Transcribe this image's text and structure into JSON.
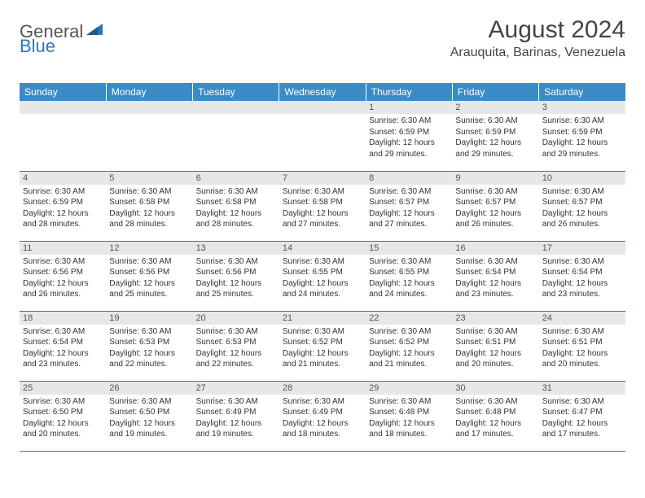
{
  "logo": {
    "general": "General",
    "blue": "Blue"
  },
  "title": "August 2024",
  "location": "Arauquita, Barinas, Venezuela",
  "colors": {
    "header_bg": "#3b8bc7",
    "header_text": "#ffffff",
    "daynum_bg": "#e7e7e7",
    "border": "#2e75b6",
    "title_text": "#444444",
    "body_text": "#333333"
  },
  "daysOfWeek": [
    "Sunday",
    "Monday",
    "Tuesday",
    "Wednesday",
    "Thursday",
    "Friday",
    "Saturday"
  ],
  "weeks": [
    [
      null,
      null,
      null,
      null,
      {
        "n": "1",
        "sr": "Sunrise: 6:30 AM",
        "ss": "Sunset: 6:59 PM",
        "d1": "Daylight: 12 hours",
        "d2": "and 29 minutes."
      },
      {
        "n": "2",
        "sr": "Sunrise: 6:30 AM",
        "ss": "Sunset: 6:59 PM",
        "d1": "Daylight: 12 hours",
        "d2": "and 29 minutes."
      },
      {
        "n": "3",
        "sr": "Sunrise: 6:30 AM",
        "ss": "Sunset: 6:59 PM",
        "d1": "Daylight: 12 hours",
        "d2": "and 29 minutes."
      }
    ],
    [
      {
        "n": "4",
        "sr": "Sunrise: 6:30 AM",
        "ss": "Sunset: 6:59 PM",
        "d1": "Daylight: 12 hours",
        "d2": "and 28 minutes."
      },
      {
        "n": "5",
        "sr": "Sunrise: 6:30 AM",
        "ss": "Sunset: 6:58 PM",
        "d1": "Daylight: 12 hours",
        "d2": "and 28 minutes."
      },
      {
        "n": "6",
        "sr": "Sunrise: 6:30 AM",
        "ss": "Sunset: 6:58 PM",
        "d1": "Daylight: 12 hours",
        "d2": "and 28 minutes."
      },
      {
        "n": "7",
        "sr": "Sunrise: 6:30 AM",
        "ss": "Sunset: 6:58 PM",
        "d1": "Daylight: 12 hours",
        "d2": "and 27 minutes."
      },
      {
        "n": "8",
        "sr": "Sunrise: 6:30 AM",
        "ss": "Sunset: 6:57 PM",
        "d1": "Daylight: 12 hours",
        "d2": "and 27 minutes."
      },
      {
        "n": "9",
        "sr": "Sunrise: 6:30 AM",
        "ss": "Sunset: 6:57 PM",
        "d1": "Daylight: 12 hours",
        "d2": "and 26 minutes."
      },
      {
        "n": "10",
        "sr": "Sunrise: 6:30 AM",
        "ss": "Sunset: 6:57 PM",
        "d1": "Daylight: 12 hours",
        "d2": "and 26 minutes."
      }
    ],
    [
      {
        "n": "11",
        "sr": "Sunrise: 6:30 AM",
        "ss": "Sunset: 6:56 PM",
        "d1": "Daylight: 12 hours",
        "d2": "and 26 minutes."
      },
      {
        "n": "12",
        "sr": "Sunrise: 6:30 AM",
        "ss": "Sunset: 6:56 PM",
        "d1": "Daylight: 12 hours",
        "d2": "and 25 minutes."
      },
      {
        "n": "13",
        "sr": "Sunrise: 6:30 AM",
        "ss": "Sunset: 6:56 PM",
        "d1": "Daylight: 12 hours",
        "d2": "and 25 minutes."
      },
      {
        "n": "14",
        "sr": "Sunrise: 6:30 AM",
        "ss": "Sunset: 6:55 PM",
        "d1": "Daylight: 12 hours",
        "d2": "and 24 minutes."
      },
      {
        "n": "15",
        "sr": "Sunrise: 6:30 AM",
        "ss": "Sunset: 6:55 PM",
        "d1": "Daylight: 12 hours",
        "d2": "and 24 minutes."
      },
      {
        "n": "16",
        "sr": "Sunrise: 6:30 AM",
        "ss": "Sunset: 6:54 PM",
        "d1": "Daylight: 12 hours",
        "d2": "and 23 minutes."
      },
      {
        "n": "17",
        "sr": "Sunrise: 6:30 AM",
        "ss": "Sunset: 6:54 PM",
        "d1": "Daylight: 12 hours",
        "d2": "and 23 minutes."
      }
    ],
    [
      {
        "n": "18",
        "sr": "Sunrise: 6:30 AM",
        "ss": "Sunset: 6:54 PM",
        "d1": "Daylight: 12 hours",
        "d2": "and 23 minutes."
      },
      {
        "n": "19",
        "sr": "Sunrise: 6:30 AM",
        "ss": "Sunset: 6:53 PM",
        "d1": "Daylight: 12 hours",
        "d2": "and 22 minutes."
      },
      {
        "n": "20",
        "sr": "Sunrise: 6:30 AM",
        "ss": "Sunset: 6:53 PM",
        "d1": "Daylight: 12 hours",
        "d2": "and 22 minutes."
      },
      {
        "n": "21",
        "sr": "Sunrise: 6:30 AM",
        "ss": "Sunset: 6:52 PM",
        "d1": "Daylight: 12 hours",
        "d2": "and 21 minutes."
      },
      {
        "n": "22",
        "sr": "Sunrise: 6:30 AM",
        "ss": "Sunset: 6:52 PM",
        "d1": "Daylight: 12 hours",
        "d2": "and 21 minutes."
      },
      {
        "n": "23",
        "sr": "Sunrise: 6:30 AM",
        "ss": "Sunset: 6:51 PM",
        "d1": "Daylight: 12 hours",
        "d2": "and 20 minutes."
      },
      {
        "n": "24",
        "sr": "Sunrise: 6:30 AM",
        "ss": "Sunset: 6:51 PM",
        "d1": "Daylight: 12 hours",
        "d2": "and 20 minutes."
      }
    ],
    [
      {
        "n": "25",
        "sr": "Sunrise: 6:30 AM",
        "ss": "Sunset: 6:50 PM",
        "d1": "Daylight: 12 hours",
        "d2": "and 20 minutes."
      },
      {
        "n": "26",
        "sr": "Sunrise: 6:30 AM",
        "ss": "Sunset: 6:50 PM",
        "d1": "Daylight: 12 hours",
        "d2": "and 19 minutes."
      },
      {
        "n": "27",
        "sr": "Sunrise: 6:30 AM",
        "ss": "Sunset: 6:49 PM",
        "d1": "Daylight: 12 hours",
        "d2": "and 19 minutes."
      },
      {
        "n": "28",
        "sr": "Sunrise: 6:30 AM",
        "ss": "Sunset: 6:49 PM",
        "d1": "Daylight: 12 hours",
        "d2": "and 18 minutes."
      },
      {
        "n": "29",
        "sr": "Sunrise: 6:30 AM",
        "ss": "Sunset: 6:48 PM",
        "d1": "Daylight: 12 hours",
        "d2": "and 18 minutes."
      },
      {
        "n": "30",
        "sr": "Sunrise: 6:30 AM",
        "ss": "Sunset: 6:48 PM",
        "d1": "Daylight: 12 hours",
        "d2": "and 17 minutes."
      },
      {
        "n": "31",
        "sr": "Sunrise: 6:30 AM",
        "ss": "Sunset: 6:47 PM",
        "d1": "Daylight: 12 hours",
        "d2": "and 17 minutes."
      }
    ]
  ]
}
